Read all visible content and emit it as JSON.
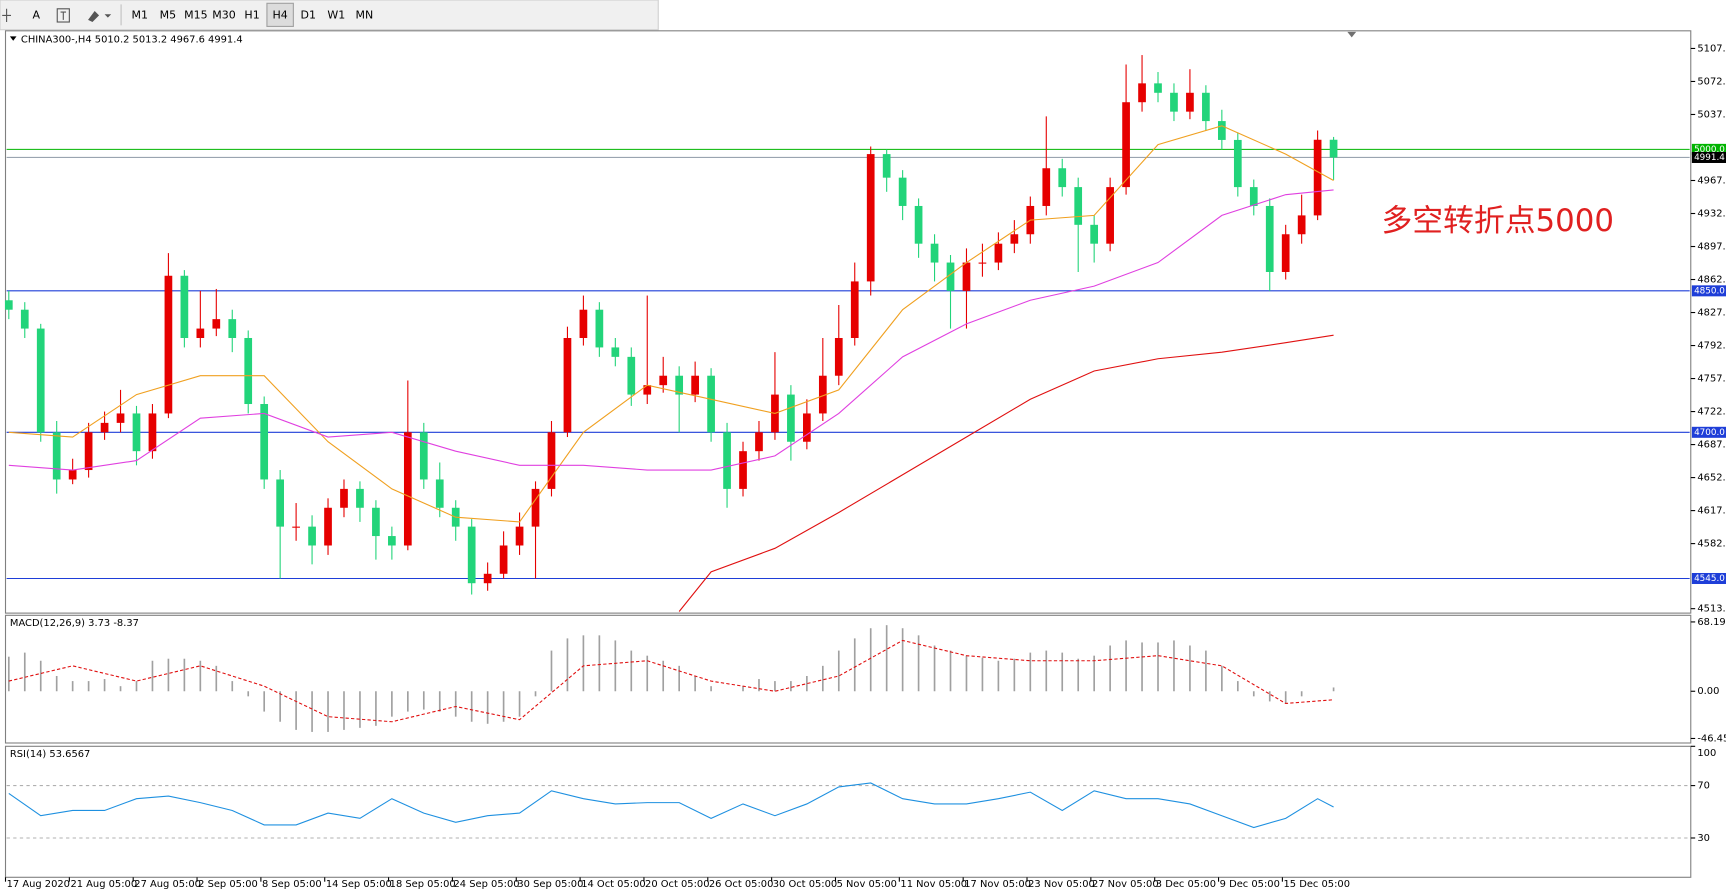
{
  "toolbar": {
    "tools": [
      "A"
    ],
    "timeframes": [
      "M1",
      "M5",
      "M15",
      "M30",
      "H1",
      "H4",
      "D1",
      "W1",
      "MN"
    ],
    "active": 5
  },
  "chart_data": [
    {
      "type": "candlestick",
      "title": "CHINA300-,H4  5010.2 5013.2 4967.6 4991.4",
      "categories": [
        "17 Aug 2020",
        null,
        null,
        null,
        "21 Aug 05:00",
        null,
        null,
        null,
        "27 Aug 05:00",
        null,
        null,
        null,
        "2 Sep 05:00",
        null,
        null,
        null,
        "8 Sep 05:00",
        null,
        null,
        null,
        "14 Sep 05:00",
        null,
        null,
        null,
        "18 Sep 05:00",
        null,
        null,
        null,
        "24 Sep 05:00",
        null,
        null,
        null,
        "30 Sep 05:00",
        null,
        null,
        null,
        "14 Oct 05:00",
        null,
        null,
        null,
        "20 Oct 05:00",
        null,
        null,
        null,
        "26 Oct 05:00",
        null,
        null,
        null,
        "30 Oct 05:00",
        null,
        null,
        null,
        "5 Nov 05:00",
        null,
        null,
        null,
        "11 Nov 05:00",
        null,
        null,
        null,
        "17 Nov 05:00",
        null,
        null,
        null,
        "23 Nov 05:00",
        null,
        null,
        null,
        "27 Nov 05:00",
        null,
        null,
        null,
        "3 Dec 05:00",
        null,
        null,
        null,
        "9 Dec 05:00",
        null,
        null,
        null,
        "15 Dec 05:00",
        null,
        null,
        null
      ],
      "open": [
        4840,
        4830,
        4810,
        4700,
        4650,
        4660,
        4700,
        4710,
        4720,
        4680,
        4720,
        4866,
        4800,
        4810,
        4820,
        4800,
        4730,
        4650,
        4600,
        4600,
        4580,
        4620,
        4640,
        4620,
        4590,
        4580,
        4700,
        4650,
        4620,
        4600,
        4540,
        4550,
        4580,
        4600,
        4640,
        4700,
        4800,
        4830,
        4790,
        4780,
        4740,
        4750,
        4760,
        4740,
        4760,
        4700,
        4640,
        4680,
        4700,
        4740,
        4690,
        4720,
        4760,
        4800,
        4860,
        4995,
        4970,
        4940,
        4900,
        4880,
        4850,
        4880,
        4880,
        4900,
        4910,
        4940,
        4980,
        4960,
        4920,
        4900,
        4960,
        5050,
        5070,
        5060,
        5040,
        5060,
        5030,
        5010,
        4960,
        4940,
        4870,
        4910,
        4930,
        5010.2
      ],
      "high": [
        4850,
        4838,
        4815,
        4712,
        4672,
        4710,
        4722,
        4745,
        4728,
        4730,
        4890,
        4872,
        4850,
        4852,
        4830,
        4808,
        4738,
        4660,
        4625,
        4612,
        4630,
        4650,
        4648,
        4628,
        4600,
        4755,
        4710,
        4668,
        4628,
        4608,
        4562,
        4595,
        4615,
        4648,
        4712,
        4812,
        4845,
        4838,
        4800,
        4790,
        4845,
        4780,
        4770,
        4775,
        4768,
        4710,
        4690,
        4712,
        4785,
        4750,
        4735,
        4800,
        4835,
        4880,
        5003,
        5000,
        4978,
        4948,
        4910,
        4888,
        4895,
        4900,
        4912,
        4925,
        4950,
        5035,
        4990,
        4970,
        4930,
        4970,
        5090,
        5100,
        5082,
        5070,
        5085,
        5068,
        5042,
        5018,
        4968,
        4948,
        4920,
        4952,
        5020,
        5013.2
      ],
      "low": [
        4820,
        4800,
        4690,
        4635,
        4645,
        4652,
        4692,
        4700,
        4665,
        4672,
        4715,
        4790,
        4790,
        4802,
        4785,
        4720,
        4640,
        4545,
        4585,
        4560,
        4570,
        4610,
        4605,
        4565,
        4565,
        4575,
        4640,
        4610,
        4585,
        4528,
        4532,
        4545,
        4570,
        4545,
        4632,
        4695,
        4792,
        4780,
        4770,
        4728,
        4730,
        4742,
        4700,
        4732,
        4690,
        4620,
        4632,
        4670,
        4692,
        4670,
        4682,
        4712,
        4750,
        4792,
        4845,
        4955,
        4925,
        4885,
        4860,
        4810,
        4810,
        4865,
        4872,
        4890,
        4900,
        4930,
        4950,
        4870,
        4880,
        4892,
        4952,
        5040,
        5050,
        5030,
        5032,
        5020,
        5000,
        4950,
        4930,
        4850,
        4862,
        4900,
        4925,
        4967.6
      ],
      "close": [
        4830,
        4810,
        4700,
        4650,
        4660,
        4700,
        4710,
        4720,
        4680,
        4720,
        4866,
        4800,
        4810,
        4820,
        4800,
        4730,
        4650,
        4600,
        4600,
        4580,
        4620,
        4640,
        4620,
        4590,
        4580,
        4700,
        4650,
        4620,
        4600,
        4540,
        4550,
        4580,
        4600,
        4640,
        4700,
        4800,
        4830,
        4790,
        4780,
        4740,
        4750,
        4760,
        4740,
        4760,
        4700,
        4640,
        4680,
        4700,
        4740,
        4690,
        4720,
        4760,
        4800,
        4860,
        4995,
        4970,
        4940,
        4900,
        4880,
        4850,
        4880,
        4880,
        4900,
        4910,
        4940,
        4980,
        4960,
        4920,
        4900,
        4960,
        5050,
        5070,
        5060,
        5040,
        5060,
        5030,
        5010,
        4960,
        4940,
        4870,
        4910,
        4930,
        5010.2,
        4991.4
      ],
      "up_color": "#e60000",
      "down_color": "#22d47a",
      "ylim": [
        4508.3,
        5125.7
      ],
      "yticks": [
        {
          "value": 5107,
          "label": "5107.0"
        },
        {
          "value": 5072,
          "label": "5072.0"
        },
        {
          "value": 5037,
          "label": "5037.0"
        },
        {
          "value": 4967,
          "label": "4967.0"
        },
        {
          "value": 4932,
          "label": "4932.0"
        },
        {
          "value": 4897,
          "label": "4897.0"
        },
        {
          "value": 4862,
          "label": "4862.0"
        },
        {
          "value": 4827,
          "label": "4827.0"
        },
        {
          "value": 4792,
          "label": "4792.0"
        },
        {
          "value": 4757,
          "label": "4757.0"
        },
        {
          "value": 4722,
          "label": "4722.0"
        },
        {
          "value": 4687,
          "label": "4687.0"
        },
        {
          "value": 4652,
          "label": "4652.0"
        },
        {
          "value": 4617,
          "label": "4617.0"
        },
        {
          "value": 4582,
          "label": "4582.0"
        },
        {
          "value": 4513,
          "label": "4513.0"
        }
      ],
      "series": [
        {
          "color": "#f0a020",
          "x": [
            0,
            4,
            8,
            12,
            16,
            20,
            24,
            28,
            32,
            36,
            40,
            44,
            48,
            52,
            56,
            60,
            64,
            68,
            72,
            76,
            80,
            83
          ],
          "values": [
            4700,
            4695,
            4740,
            4760,
            4760,
            4690,
            4640,
            4610,
            4605,
            4700,
            4750,
            4735,
            4720,
            4745,
            4830,
            4880,
            4925,
            4930,
            5005,
            5025,
            4995,
            4967
          ]
        },
        {
          "color": "#e040e0",
          "x": [
            0,
            4,
            8,
            12,
            16,
            20,
            24,
            28,
            32,
            36,
            40,
            44,
            48,
            52,
            56,
            60,
            64,
            68,
            72,
            76,
            80,
            83
          ],
          "values": [
            4665,
            4660,
            4670,
            4715,
            4720,
            4695,
            4700,
            4680,
            4665,
            4665,
            4660,
            4660,
            4675,
            4720,
            4780,
            4815,
            4840,
            4855,
            4880,
            4930,
            4952,
            4957
          ]
        },
        {
          "color": "#e01010",
          "x": [
            42,
            44,
            48,
            52,
            56,
            60,
            64,
            68,
            72,
            76,
            80,
            83
          ],
          "values": [
            4510,
            4552,
            4577,
            4615,
            4655,
            4695,
            4735,
            4765,
            4778,
            4785,
            4795,
            4803
          ]
        }
      ],
      "levels": [
        {
          "value": 5000,
          "label": "5000.0",
          "color": "#00b400"
        },
        {
          "value": 4991.4,
          "label": "4991.4",
          "color": "#000000"
        },
        {
          "value": 4850,
          "label": "4850.0",
          "color": "#1e3ed8"
        },
        {
          "value": 4700,
          "label": "4700.0",
          "color": "#1e3ed8"
        },
        {
          "value": 4545,
          "label": "4545.0",
          "color": "#1e3ed8"
        }
      ],
      "annotation": {
        "text": "多空转折点5000",
        "color": "#e02020"
      }
    },
    {
      "type": "macd",
      "title": "MACD(12,26,9) 3.73 -8.37",
      "values": [
        34,
        38,
        30,
        15,
        10,
        10,
        12,
        5,
        10,
        30,
        32,
        32,
        30,
        25,
        10,
        -5,
        -20,
        -30,
        -38,
        -40,
        -40,
        -38,
        -36,
        -34,
        -25,
        -20,
        -18,
        -20,
        -25,
        -30,
        -32,
        -30,
        -25,
        -5,
        40,
        52,
        55,
        55,
        50,
        40,
        35,
        30,
        25,
        15,
        5,
        0,
        5,
        12,
        10,
        10,
        15,
        25,
        40,
        52,
        62,
        65,
        62,
        55,
        45,
        40,
        35,
        33,
        30,
        32,
        38,
        40,
        38,
        32,
        35,
        45,
        50,
        48,
        48,
        50,
        45,
        40,
        25,
        10,
        -5,
        -10,
        -12,
        -5,
        0,
        3.73
      ],
      "color": "#a0a0a0",
      "series": [
        {
          "color": "#e01010",
          "x": [
            0,
            4,
            8,
            12,
            16,
            20,
            24,
            28,
            32,
            36,
            40,
            44,
            48,
            52,
            56,
            60,
            64,
            68,
            72,
            76,
            80,
            83
          ],
          "values": [
            10,
            25,
            10,
            25,
            5,
            -25,
            -30,
            -15,
            -28,
            25,
            30,
            10,
            0,
            15,
            50,
            35,
            30,
            30,
            35,
            25,
            -12,
            -8.37
          ]
        }
      ],
      "ylim": [
        -50.9,
        74.7
      ],
      "yticks": [
        68.19,
        {
          "value": 0,
          "label": "0.00"
        },
        -46.45
      ]
    },
    {
      "type": "line",
      "title": "RSI(14) 53.6567",
      "series": [
        {
          "color": "#1e90e0",
          "x": [
            0,
            2,
            4,
            6,
            8,
            10,
            12,
            14,
            16,
            18,
            20,
            22,
            24,
            26,
            28,
            30,
            32,
            34,
            36,
            38,
            40,
            42,
            44,
            46,
            48,
            50,
            52,
            54,
            56,
            58,
            60,
            62,
            64,
            66,
            68,
            70,
            72,
            74,
            76,
            78,
            80,
            82,
            83
          ],
          "values": [
            64,
            47,
            51,
            51,
            60,
            62,
            57,
            51,
            40,
            40,
            49,
            45,
            60,
            49,
            42,
            47,
            49,
            66,
            60,
            56,
            57,
            57,
            45,
            56,
            47,
            56,
            69,
            72,
            60,
            56,
            56,
            60,
            65,
            51,
            66,
            60,
            60,
            56,
            47,
            38,
            45,
            60,
            53.6567
          ]
        }
      ],
      "ylim": [
        0,
        100
      ],
      "yticks": [
        100,
        70,
        30
      ],
      "grid": true
    }
  ]
}
